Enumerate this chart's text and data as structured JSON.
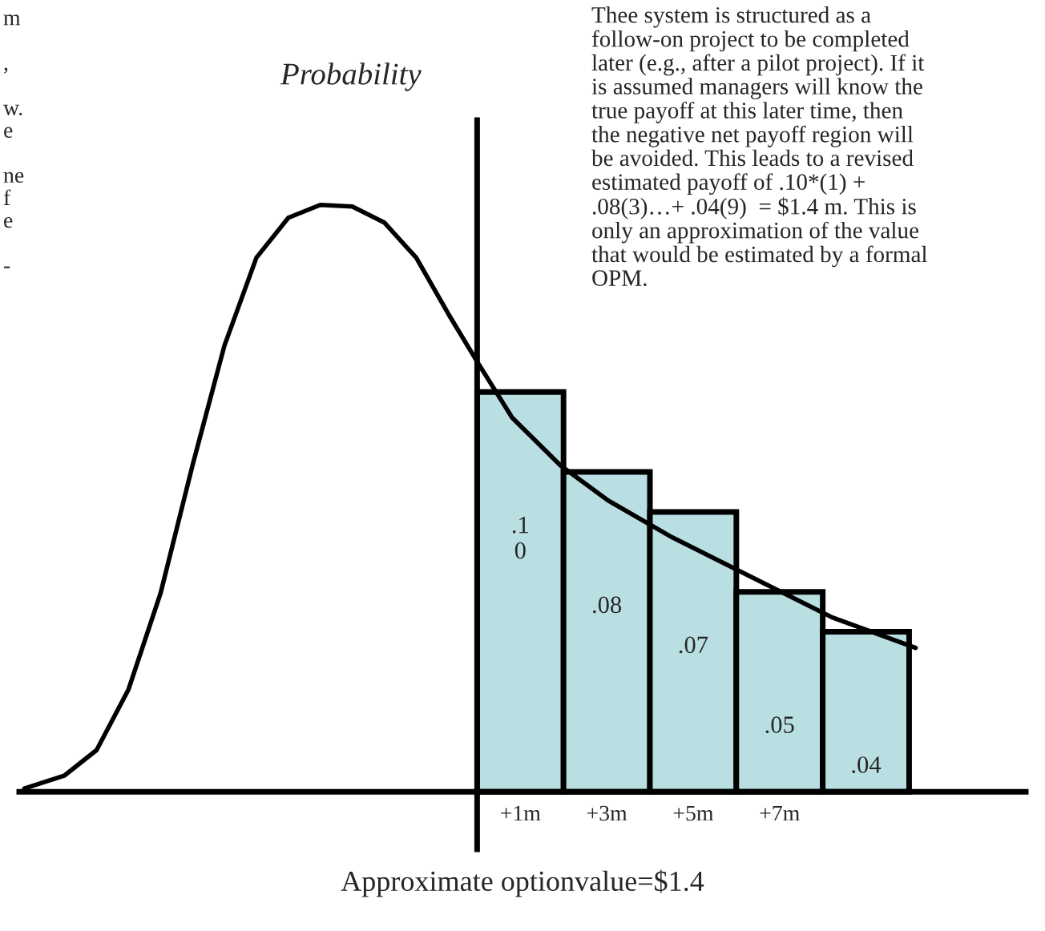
{
  "chart_data": {
    "type": "bar",
    "xlabel": "Approximate optionvalue=$1.4",
    "x": [
      1,
      3,
      5,
      7,
      9
    ],
    "xlim": [
      -10.6,
      12.7
    ],
    "xticks": [
      {
        "value": 1,
        "label": "+1m"
      },
      {
        "value": 3,
        "label": "+3m"
      },
      {
        "value": 5,
        "label": "+5m"
      },
      {
        "value": 7,
        "label": "+7m"
      }
    ],
    "ylim": [
      -0.0144,
      0.168
    ],
    "series": [
      {
        "color": "#b9dfe2",
        "values": [
          0.1,
          0.08,
          0.07,
          0.05,
          0.04
        ],
        "value_labels": [
          ".1\n0",
          ".08",
          ".07",
          ".05",
          ".04"
        ]
      },
      {
        "type": "line",
        "color": "#000000",
        "x": [
          -10.48,
          -9.56,
          -8.81,
          -8.07,
          -7.33,
          -6.59,
          -5.85,
          -5.11,
          -4.37,
          -3.63,
          -2.89,
          -2.15,
          -1.41,
          -0.67,
          0,
          0.81,
          1.93,
          3.04,
          4.52,
          6.37,
          8.22,
          10.15
        ],
        "values": [
          0.0008,
          0.004,
          0.0104,
          0.0256,
          0.0496,
          0.0816,
          0.1116,
          0.1336,
          0.1436,
          0.1468,
          0.1464,
          0.1424,
          0.1336,
          0.1196,
          0.1076,
          0.0936,
          0.0816,
          0.0728,
          0.0636,
          0.0536,
          0.0436,
          0.036
        ]
      }
    ],
    "annotations": [
      "Probability",
      "Thee system is structured as a\nfollow-on project to be completed\nlater (e.g., after a pilot project). If it\nis assumed managers will know the\ntrue payoff at this later time, then\nthe negative net payoff region will\nbe avoided. This leads to a revised\nestimated payoff of .10*(1) +\n.08(3)…+ .04(9)  = $1.4 m. This is\nonly an approximation of the value\nthat would be estimated by a formal\nOPM.",
      "m\n\n,\n\nw.\ne\n\nne\nf\ne\n\n-"
    ],
    "grid": false,
    "legend": false
  }
}
